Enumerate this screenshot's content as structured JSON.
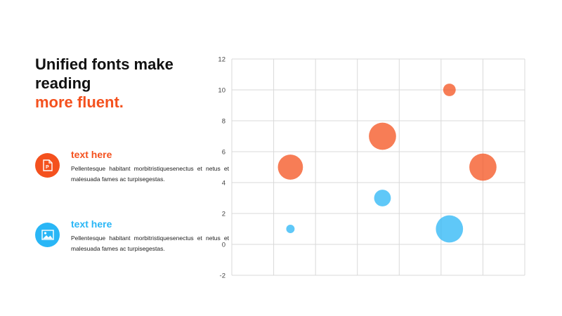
{
  "headline": {
    "line1": "Unified fonts make",
    "line2": "reading",
    "line3": "more fluent."
  },
  "items": [
    {
      "title": "text here",
      "desc": "Pellentesque habitant morbitristiquesenectus et netus et malesuada fames ac turpisegestas.",
      "icon": "document-p-icon",
      "color": "#f4511e"
    },
    {
      "title": "text here",
      "desc": "Pellentesque habitant morbitristiquesenectus et netus et malesuada fames ac turpisegestas.",
      "icon": "image-icon",
      "color": "#29b6f6"
    }
  ],
  "chart_data": {
    "type": "scatter",
    "title": "",
    "xlabel": "",
    "ylabel": "",
    "xlim": [
      0,
      7
    ],
    "ylim": [
      -2,
      12
    ],
    "yticks": [
      -2,
      0,
      2,
      4,
      6,
      8,
      10,
      12
    ],
    "x_tick_labels_shown": false,
    "grid": true,
    "series": [
      {
        "color": "#f4511e",
        "points": [
          {
            "x": 1.4,
            "y": 5,
            "size": 0.6
          },
          {
            "x": 3.6,
            "y": 7,
            "size": 0.65
          },
          {
            "x": 5.2,
            "y": 10,
            "size": 0.3
          },
          {
            "x": 6.0,
            "y": 5,
            "size": 0.65
          }
        ]
      },
      {
        "color": "#29b6f6",
        "points": [
          {
            "x": 1.4,
            "y": 1,
            "size": 0.2
          },
          {
            "x": 3.6,
            "y": 3,
            "size": 0.4
          },
          {
            "x": 5.2,
            "y": 1,
            "size": 0.65
          }
        ]
      }
    ]
  }
}
